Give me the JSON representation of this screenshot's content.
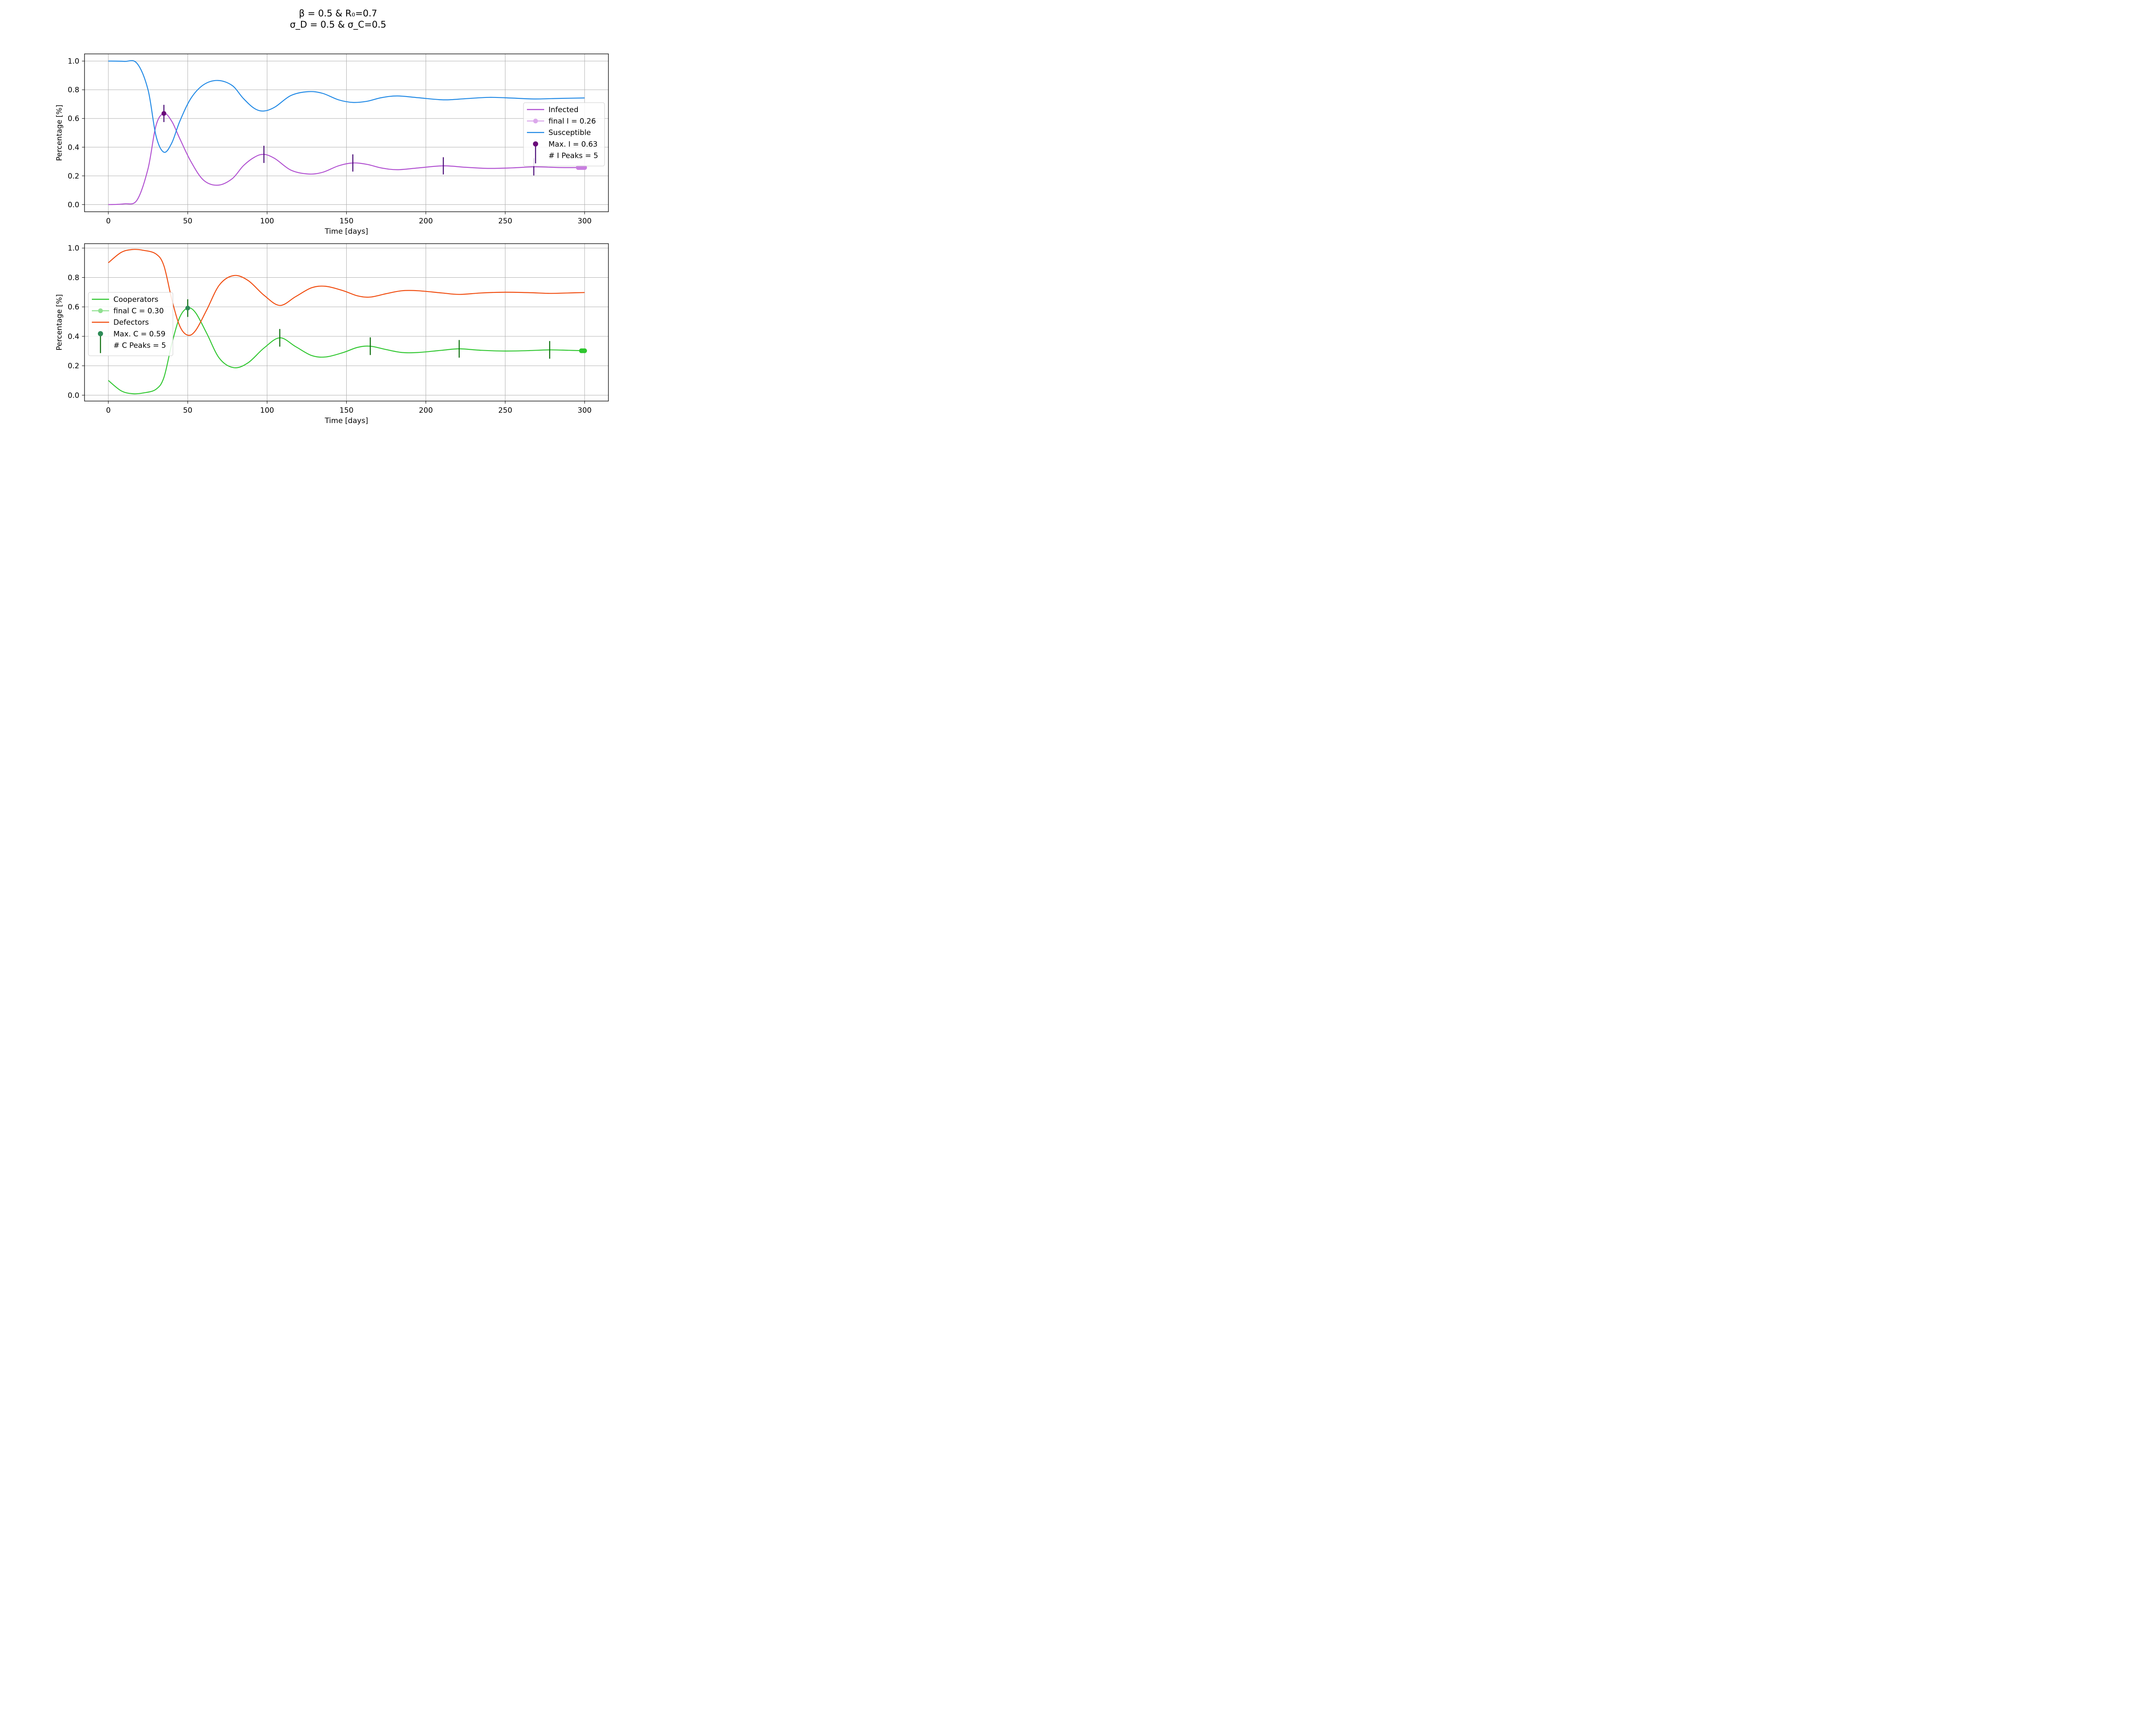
{
  "figure": {
    "title_line1": "β = 0.5 & R₀=0.7",
    "title_line2": "σ_D = 0.5 & σ_C=0.5"
  },
  "chart_data": [
    {
      "type": "line",
      "xlabel": "Time [days]",
      "ylabel": "Percentage [%]",
      "xlim": [
        -15,
        315
      ],
      "ylim": [
        -0.05,
        1.05
      ],
      "xticks": [
        0,
        50,
        100,
        150,
        200,
        250,
        300
      ],
      "yticks": [
        0.0,
        0.2,
        0.4,
        0.6,
        0.8,
        1.0
      ],
      "grid": true,
      "legend_position": "center-right",
      "series": [
        {
          "name": "Infected",
          "color": "#b04fd0",
          "points": [
            [
              0,
              0.0
            ],
            [
              10,
              0.005
            ],
            [
              18,
              0.03
            ],
            [
              25,
              0.25
            ],
            [
              30,
              0.55
            ],
            [
              35,
              0.635
            ],
            [
              40,
              0.58
            ],
            [
              45,
              0.46
            ],
            [
              52,
              0.3
            ],
            [
              60,
              0.17
            ],
            [
              69,
              0.135
            ],
            [
              78,
              0.18
            ],
            [
              85,
              0.27
            ],
            [
              92,
              0.33
            ],
            [
              98,
              0.35
            ],
            [
              105,
              0.32
            ],
            [
              115,
              0.24
            ],
            [
              126,
              0.213
            ],
            [
              135,
              0.225
            ],
            [
              145,
              0.27
            ],
            [
              154,
              0.29
            ],
            [
              163,
              0.28
            ],
            [
              172,
              0.255
            ],
            [
              182,
              0.243
            ],
            [
              195,
              0.255
            ],
            [
              211,
              0.27
            ],
            [
              225,
              0.26
            ],
            [
              240,
              0.252
            ],
            [
              255,
              0.256
            ],
            [
              268,
              0.263
            ],
            [
              285,
              0.258
            ],
            [
              300,
              0.258
            ]
          ]
        },
        {
          "name": "Susceptible",
          "color": "#1f88e5",
          "points": [
            [
              0,
              1.0
            ],
            [
              10,
              0.998
            ],
            [
              18,
              0.985
            ],
            [
              25,
              0.8
            ],
            [
              30,
              0.48
            ],
            [
              35,
              0.365
            ],
            [
              40,
              0.43
            ],
            [
              45,
              0.58
            ],
            [
              52,
              0.74
            ],
            [
              60,
              0.835
            ],
            [
              69,
              0.865
            ],
            [
              78,
              0.83
            ],
            [
              85,
              0.74
            ],
            [
              92,
              0.67
            ],
            [
              98,
              0.652
            ],
            [
              105,
              0.68
            ],
            [
              115,
              0.76
            ],
            [
              126,
              0.787
            ],
            [
              135,
              0.775
            ],
            [
              145,
              0.73
            ],
            [
              154,
              0.712
            ],
            [
              163,
              0.72
            ],
            [
              172,
              0.745
            ],
            [
              182,
              0.757
            ],
            [
              195,
              0.745
            ],
            [
              211,
              0.73
            ],
            [
              225,
              0.738
            ],
            [
              240,
              0.747
            ],
            [
              255,
              0.742
            ],
            [
              268,
              0.736
            ],
            [
              285,
              0.74
            ],
            [
              300,
              0.743
            ]
          ]
        }
      ],
      "peaks": {
        "color": "#4b0e78",
        "x": [
          35,
          98,
          154,
          211,
          268
        ],
        "y": [
          0.635,
          0.35,
          0.29,
          0.27,
          0.263
        ],
        "errors": [
          0.06,
          0.06,
          0.06,
          0.06,
          0.06
        ]
      },
      "final_marker": {
        "x": [
          296,
          297,
          298,
          299,
          300
        ],
        "y": [
          0.258,
          0.258,
          0.258,
          0.258,
          0.258
        ],
        "color": "#c97fe0"
      },
      "max_marker": {
        "x": 35,
        "y": 0.635,
        "color": "#6a0a7a"
      },
      "legend": {
        "items": [
          {
            "label": "Infected",
            "kind": "line",
            "color": "#b04fd0"
          },
          {
            "label": "final I = 0.26",
            "kind": "line-dot",
            "color": "#dba8eb"
          },
          {
            "label": "Susceptible",
            "kind": "line",
            "color": "#1f88e5"
          },
          {
            "label": "Max. I = 0.63",
            "kind": "stem",
            "color": "#6a0a7a"
          },
          {
            "label": "# I Peaks = 5",
            "kind": "none",
            "color": ""
          }
        ]
      }
    },
    {
      "type": "line",
      "xlabel": "Time [days]",
      "ylabel": "Percentage [%]",
      "xlim": [
        -15,
        315
      ],
      "ylim": [
        -0.04,
        1.03
      ],
      "xticks": [
        0,
        50,
        100,
        150,
        200,
        250,
        300
      ],
      "yticks": [
        0.0,
        0.2,
        0.4,
        0.6,
        0.8,
        1.0
      ],
      "grid": true,
      "legend_position": "center-left",
      "series": [
        {
          "name": "Cooperators",
          "color": "#2ec62e",
          "points": [
            [
              0,
              0.1
            ],
            [
              8,
              0.03
            ],
            [
              15,
              0.01
            ],
            [
              22,
              0.015
            ],
            [
              30,
              0.04
            ],
            [
              35,
              0.12
            ],
            [
              40,
              0.35
            ],
            [
              45,
              0.53
            ],
            [
              50,
              0.592
            ],
            [
              55,
              0.56
            ],
            [
              62,
              0.42
            ],
            [
              70,
              0.25
            ],
            [
              79,
              0.187
            ],
            [
              88,
              0.22
            ],
            [
              98,
              0.32
            ],
            [
              108,
              0.39
            ],
            [
              118,
              0.33
            ],
            [
              128,
              0.27
            ],
            [
              137,
              0.26
            ],
            [
              148,
              0.29
            ],
            [
              157,
              0.325
            ],
            [
              165,
              0.333
            ],
            [
              175,
              0.31
            ],
            [
              185,
              0.29
            ],
            [
              195,
              0.29
            ],
            [
              210,
              0.305
            ],
            [
              221,
              0.315
            ],
            [
              235,
              0.305
            ],
            [
              250,
              0.3
            ],
            [
              265,
              0.303
            ],
            [
              278,
              0.308
            ],
            [
              290,
              0.305
            ],
            [
              300,
              0.302
            ]
          ]
        },
        {
          "name": "Defectors",
          "color": "#f04a0c",
          "points": [
            [
              0,
              0.9
            ],
            [
              8,
              0.97
            ],
            [
              15,
              0.99
            ],
            [
              22,
              0.985
            ],
            [
              30,
              0.96
            ],
            [
              35,
              0.88
            ],
            [
              40,
              0.65
            ],
            [
              45,
              0.47
            ],
            [
              50,
              0.408
            ],
            [
              55,
              0.44
            ],
            [
              62,
              0.58
            ],
            [
              70,
              0.75
            ],
            [
              79,
              0.813
            ],
            [
              88,
              0.78
            ],
            [
              98,
              0.68
            ],
            [
              108,
              0.61
            ],
            [
              118,
              0.67
            ],
            [
              128,
              0.73
            ],
            [
              137,
              0.74
            ],
            [
              148,
              0.71
            ],
            [
              157,
              0.675
            ],
            [
              165,
              0.667
            ],
            [
              175,
              0.69
            ],
            [
              185,
              0.71
            ],
            [
              195,
              0.71
            ],
            [
              210,
              0.695
            ],
            [
              221,
              0.685
            ],
            [
              235,
              0.695
            ],
            [
              250,
              0.7
            ],
            [
              265,
              0.697
            ],
            [
              278,
              0.692
            ],
            [
              290,
              0.695
            ],
            [
              300,
              0.698
            ]
          ]
        }
      ],
      "peaks": {
        "color": "#0d6e0d",
        "x": [
          50,
          108,
          165,
          221,
          278
        ],
        "y": [
          0.592,
          0.39,
          0.333,
          0.315,
          0.308
        ],
        "errors": [
          0.06,
          0.06,
          0.06,
          0.06,
          0.06
        ]
      },
      "final_marker": {
        "x": [
          298,
          299,
          300
        ],
        "y": [
          0.302,
          0.302,
          0.302
        ],
        "color": "#2ec62e"
      },
      "max_marker": {
        "x": 50,
        "y": 0.592,
        "color": "#2e8b57"
      },
      "legend": {
        "items": [
          {
            "label": "Cooperators",
            "kind": "line",
            "color": "#2ec62e"
          },
          {
            "label": "final C = 0.30",
            "kind": "line-dot",
            "color": "#8fe08f"
          },
          {
            "label": "Defectors",
            "kind": "line",
            "color": "#f04a0c"
          },
          {
            "label": "Max. C = 0.59",
            "kind": "stem",
            "color": "#2e8b57"
          },
          {
            "label": "# C Peaks = 5",
            "kind": "none",
            "color": ""
          }
        ]
      }
    }
  ]
}
